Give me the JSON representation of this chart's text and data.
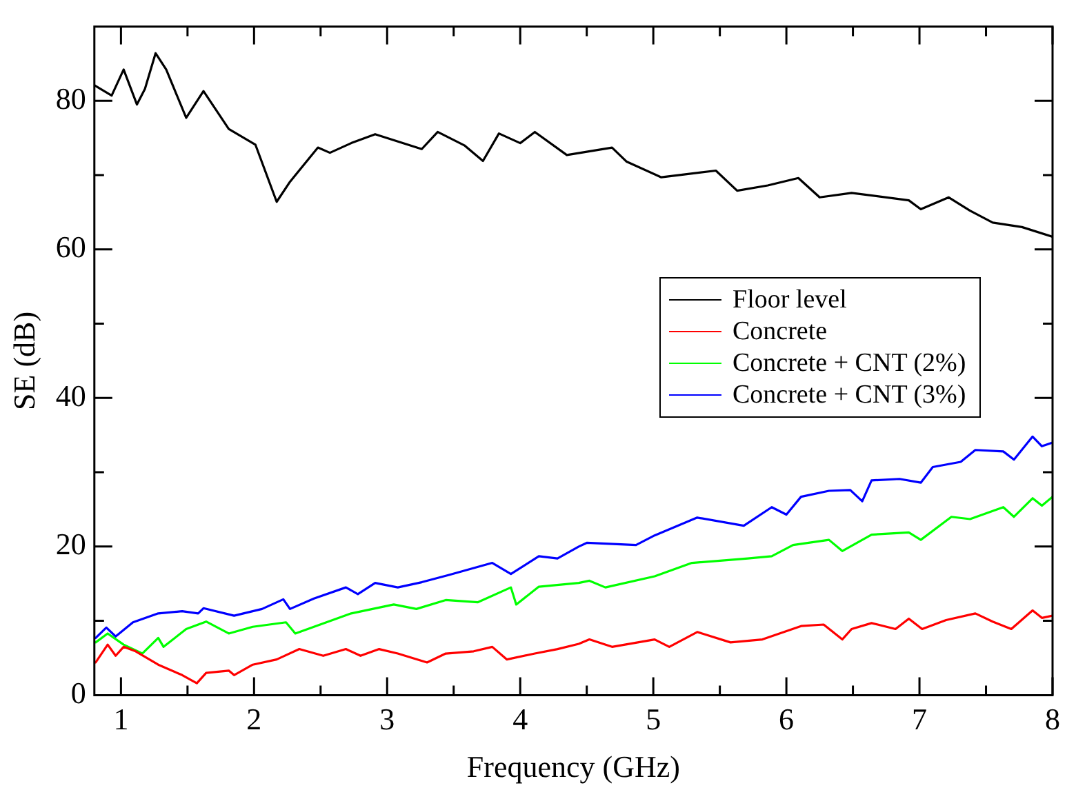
{
  "chart_data": {
    "type": "line",
    "xlabel": "Frequency (GHz)",
    "ylabel": "SE (dB)",
    "xlim": [
      0.8,
      8
    ],
    "ylim": [
      0,
      90
    ],
    "xticks": [
      1,
      {
        "value": 1.5,
        "label": null
      },
      2,
      {
        "value": 2.5,
        "label": null
      },
      3,
      {
        "value": 3.5,
        "label": null
      },
      4,
      {
        "value": 4.5,
        "label": null
      },
      5,
      {
        "value": 5.5,
        "label": null
      },
      6,
      {
        "value": 6.5,
        "label": null
      },
      7,
      {
        "value": 7.5,
        "label": null
      },
      8
    ],
    "yticks": [
      0,
      {
        "value": 10,
        "label": null
      },
      20,
      {
        "value": 30,
        "label": null
      },
      40,
      {
        "value": 50,
        "label": null
      },
      60,
      {
        "value": 70,
        "label": null
      },
      80
    ],
    "grid": false,
    "legend": "center right",
    "marker": "none",
    "line_style": "solid",
    "series": [
      {
        "name": "Floor level",
        "color": "#000000",
        "x": [
          0.8,
          0.93,
          1.02,
          1.12,
          1.18,
          1.26,
          1.34,
          1.49,
          1.62,
          1.81,
          2.01,
          2.17,
          2.27,
          2.48,
          2.57,
          2.73,
          2.91,
          3.26,
          3.38,
          3.58,
          3.72,
          3.84,
          4.0,
          4.11,
          4.35,
          4.69,
          4.8,
          5.06,
          5.47,
          5.63,
          5.86,
          6.09,
          6.25,
          6.49,
          6.92,
          7.01,
          7.22,
          7.38,
          7.55,
          7.77,
          8.0
        ],
        "values": [
          82.1,
          80.7,
          84.2,
          79.5,
          81.6,
          86.4,
          84.2,
          77.7,
          81.3,
          76.2,
          74.1,
          66.4,
          69.1,
          73.7,
          73.0,
          74.3,
          75.5,
          73.5,
          75.8,
          74.0,
          71.9,
          75.6,
          74.3,
          75.8,
          72.7,
          73.7,
          71.8,
          69.7,
          70.6,
          67.9,
          68.6,
          69.6,
          67.0,
          67.6,
          66.6,
          65.4,
          67.0,
          65.2,
          63.6,
          63.0,
          61.7
        ]
      },
      {
        "name": "Concrete",
        "color": "#ff0000",
        "x": [
          0.81,
          0.9,
          0.96,
          1.02,
          1.11,
          1.28,
          1.46,
          1.57,
          1.64,
          1.81,
          1.85,
          1.99,
          2.17,
          2.34,
          2.52,
          2.69,
          2.8,
          2.94,
          3.08,
          3.3,
          3.44,
          3.65,
          3.79,
          3.9,
          4.11,
          4.28,
          4.44,
          4.52,
          4.69,
          5.01,
          5.12,
          5.33,
          5.58,
          5.82,
          6.11,
          6.28,
          6.42,
          6.49,
          6.64,
          6.82,
          6.92,
          7.02,
          7.2,
          7.42,
          7.55,
          7.69,
          7.85,
          7.92,
          8.0
        ],
        "values": [
          4.4,
          6.8,
          5.3,
          6.5,
          5.9,
          4.1,
          2.7,
          1.6,
          3.0,
          3.3,
          2.7,
          4.1,
          4.8,
          6.2,
          5.3,
          6.2,
          5.3,
          6.2,
          5.6,
          4.4,
          5.6,
          5.9,
          6.5,
          4.8,
          5.6,
          6.2,
          6.9,
          7.5,
          6.5,
          7.5,
          6.5,
          8.5,
          7.1,
          7.5,
          9.3,
          9.5,
          7.5,
          8.9,
          9.7,
          8.9,
          10.3,
          8.9,
          10.1,
          11.0,
          9.9,
          8.9,
          11.4,
          10.4,
          10.7
        ]
      },
      {
        "name": "Concrete + CNT (2%)",
        "color": "#00ff00",
        "x": [
          0.81,
          0.9,
          1.02,
          1.16,
          1.28,
          1.32,
          1.49,
          1.64,
          1.81,
          1.99,
          2.24,
          2.31,
          2.59,
          2.73,
          3.05,
          3.22,
          3.44,
          3.68,
          3.93,
          3.97,
          4.14,
          4.44,
          4.52,
          4.64,
          5.01,
          5.29,
          5.71,
          5.89,
          6.05,
          6.32,
          6.42,
          6.64,
          6.92,
          7.01,
          7.24,
          7.38,
          7.63,
          7.71,
          7.85,
          7.92,
          8.0
        ],
        "values": [
          7.1,
          8.3,
          6.8,
          5.6,
          7.7,
          6.5,
          8.9,
          9.9,
          8.3,
          9.2,
          9.8,
          8.3,
          10.1,
          11.0,
          12.2,
          11.6,
          12.8,
          12.5,
          14.5,
          12.2,
          14.6,
          15.1,
          15.4,
          14.5,
          16.0,
          17.8,
          18.4,
          18.7,
          20.2,
          20.9,
          19.4,
          21.6,
          21.9,
          20.9,
          24.0,
          23.7,
          25.3,
          24.0,
          26.5,
          25.5,
          26.7
        ]
      },
      {
        "name": "Concrete + CNT (3%)",
        "color": "#0000ff",
        "x": [
          0.81,
          0.89,
          0.96,
          1.09,
          1.28,
          1.46,
          1.58,
          1.62,
          1.85,
          2.06,
          2.22,
          2.27,
          2.45,
          2.69,
          2.78,
          2.91,
          3.08,
          3.26,
          3.47,
          3.79,
          3.93,
          4.14,
          4.28,
          4.44,
          4.5,
          4.87,
          5.01,
          5.33,
          5.68,
          5.89,
          6.0,
          6.11,
          6.32,
          6.48,
          6.57,
          6.64,
          6.85,
          7.01,
          7.1,
          7.31,
          7.42,
          7.63,
          7.71,
          7.85,
          7.92,
          8.0
        ],
        "values": [
          7.7,
          9.1,
          7.9,
          9.8,
          11.0,
          11.3,
          11.0,
          11.7,
          10.7,
          11.6,
          12.9,
          11.6,
          13.0,
          14.5,
          13.6,
          15.1,
          14.5,
          15.2,
          16.2,
          17.8,
          16.3,
          18.7,
          18.4,
          20.0,
          20.5,
          20.2,
          21.5,
          23.9,
          22.8,
          25.3,
          24.3,
          26.7,
          27.5,
          27.6,
          26.1,
          28.9,
          29.1,
          28.6,
          30.7,
          31.4,
          33.0,
          32.8,
          31.7,
          34.8,
          33.5,
          34.0
        ]
      }
    ]
  }
}
